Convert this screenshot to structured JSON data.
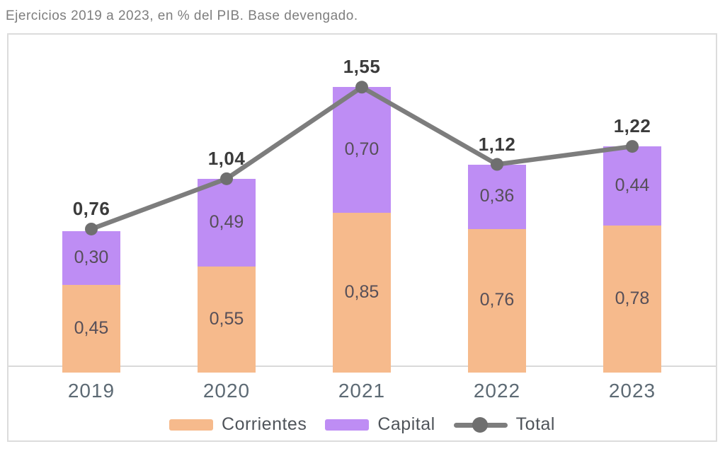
{
  "chart_data": {
    "type": "bar",
    "stacked": true,
    "title": "Ejercicios 2019 a 2023, en % del PIB. Base devengado.",
    "categories": [
      "2019",
      "2020",
      "2021",
      "2022",
      "2023"
    ],
    "series": [
      {
        "name": "Corrientes",
        "type": "bar",
        "color": "#F6BA8C",
        "values": [
          0.45,
          0.55,
          0.85,
          0.76,
          0.78
        ],
        "labels": [
          "0,45",
          "0,55",
          "0,85",
          "0,76",
          "0,78"
        ]
      },
      {
        "name": "Capital",
        "type": "bar",
        "color": "#BE8DF4",
        "values": [
          0.3,
          0.49,
          0.7,
          0.36,
          0.44
        ],
        "labels": [
          "0,30",
          "0,49",
          "0,70",
          "0,36",
          "0,44"
        ]
      },
      {
        "name": "Total",
        "type": "line",
        "color": "#7D7D7D",
        "marker_color": "#6F6F6F",
        "values": [
          0.76,
          1.04,
          1.55,
          1.12,
          1.22
        ],
        "labels": [
          "0,76",
          "1,04",
          "1,55",
          "1,12",
          "1,22"
        ]
      }
    ],
    "ylabel": "",
    "xlabel": "",
    "ylim": [
      0,
      1.85
    ],
    "grid": false,
    "legend_position": "bottom",
    "decimal_separator": ",",
    "axis_line_color": "#D9D9D9",
    "frame_border_color": "#DCDCDC",
    "value_label_color": "#564F58",
    "total_label_color": "#3B3B3B",
    "year_label_color": "#5D6A74",
    "title_color": "#7E7E7E"
  }
}
